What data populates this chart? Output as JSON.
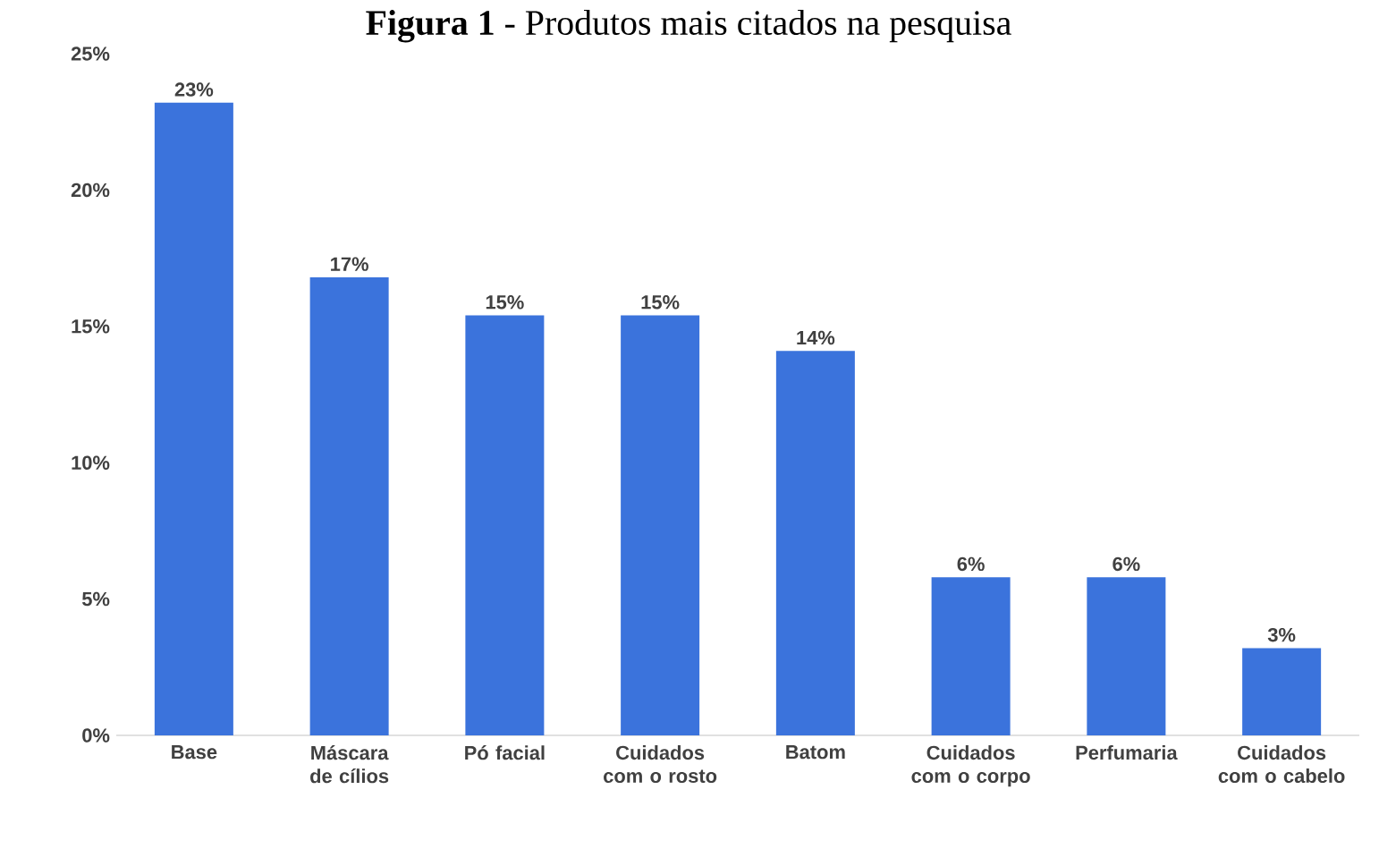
{
  "chart_data": {
    "type": "bar",
    "title": "**Figura 1** - Produtos mais citados na pesquisa",
    "categories": [
      "Base",
      "Máscara de cílios",
      "Pó facial",
      "Cuidados com o rosto",
      "Batom",
      "Cuidados com o corpo",
      "Perfumaria",
      "Cuidados com o cabelo"
    ],
    "values": [
      23.2,
      16.8,
      15.4,
      15.4,
      14.1,
      5.8,
      5.8,
      3.2
    ],
    "value_labels": [
      "23%",
      "17%",
      "15%",
      "15%",
      "14%",
      "6%",
      "6%",
      "3%"
    ],
    "color": "#3b73dc",
    "ylim": [
      0,
      25
    ],
    "yticks": [
      {
        "value": 0,
        "label": "0%"
      },
      {
        "value": 5,
        "label": "5%"
      },
      {
        "value": 10,
        "label": "10%"
      },
      {
        "value": 15,
        "label": "15%"
      },
      {
        "value": 20,
        "label": "20%"
      },
      {
        "value": 25,
        "label": "25%"
      }
    ],
    "grid": false
  }
}
